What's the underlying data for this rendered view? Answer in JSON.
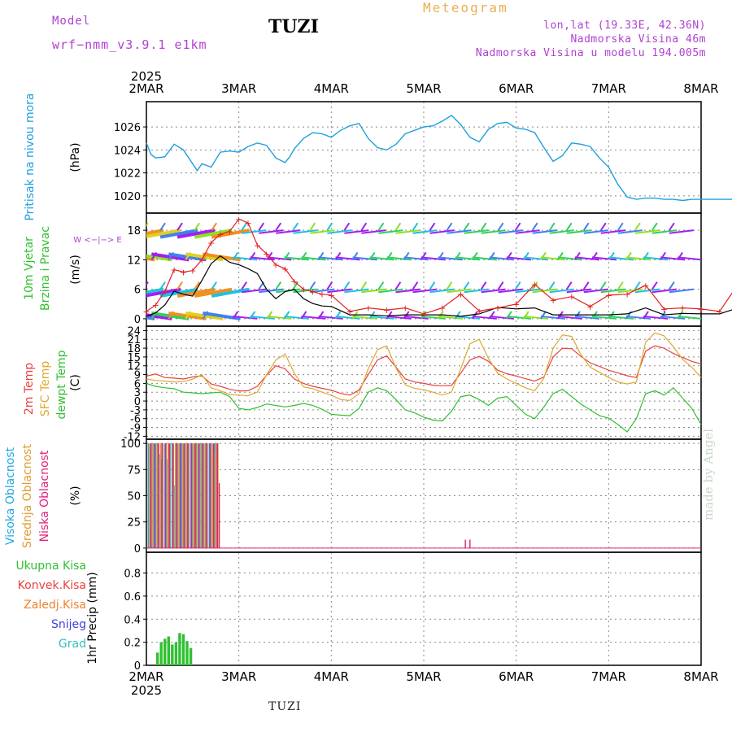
{
  "header": {
    "model_label": "Model",
    "model_name": "wrf−nmm_v3.9.1  e1km",
    "station": "TUZI",
    "title": "Meteogram",
    "lonlat": "lon,lat (19.33E, 42.36N)",
    "elevation": "Nadmorska Visina 46m",
    "model_elevation": "Nadmorska Visina u modelu 194.005m",
    "credit": "made by Angel"
  },
  "footer": {
    "station": "TUZI",
    "year": "2025"
  },
  "colors": {
    "pressure": "#1ea0e0",
    "temp2m": "#e84040",
    "sfc": "#e0a830",
    "dewpt": "#30c030",
    "wind_speed": "#000000",
    "wind_gust": "#e02020",
    "cloud_high": "#20a8e0",
    "cloud_mid": "#e09a30",
    "cloud_low": "#e0207a",
    "precip_total": "#30c030",
    "precip_conv": "#e84040",
    "precip_frozen": "#f08030",
    "snow": "#4040e0",
    "hail": "#30c0c0"
  },
  "chart_data": [
    {
      "type": "line",
      "panel": "pressure",
      "ylabel": "Pritisak na nivou mora",
      "unit": "(hPa)",
      "x_ticks": [
        "2MAR",
        "3MAR",
        "4MAR",
        "5MAR",
        "6MAR",
        "7MAR",
        "8MAR"
      ],
      "top_year": "2025",
      "ylim": [
        1018.5,
        1028.2
      ],
      "y_ticks": [
        1020,
        1022,
        1024,
        1026
      ],
      "x_day": [
        0,
        0.05,
        0.1,
        0.2,
        0.3,
        0.4,
        0.5,
        0.55,
        0.6,
        0.7,
        0.8,
        0.9,
        1.0,
        1.1,
        1.2,
        1.3,
        1.4,
        1.5,
        1.55,
        1.6,
        1.7,
        1.8,
        1.9,
        2.0,
        2.1,
        2.2,
        2.3,
        2.4,
        2.5,
        2.6,
        2.7,
        2.8,
        2.9,
        3.0,
        3.1,
        3.2,
        3.3,
        3.4,
        3.5,
        3.6,
        3.7,
        3.8,
        3.9,
        4.0,
        4.1,
        4.2,
        4.3,
        4.4,
        4.5,
        4.6,
        4.7,
        4.8,
        4.9,
        5.0,
        5.1,
        5.2,
        5.3,
        5.4,
        5.5,
        5.6,
        5.7,
        5.8,
        5.9,
        6.0,
        6.1,
        6.2,
        6.3,
        6.4,
        6.5,
        6.6,
        6.7,
        6.8,
        6.9,
        7.0
      ],
      "series": [
        {
          "values": [
            1024.6,
            1023.6,
            1023.3,
            1023.4,
            1024.5,
            1024.0,
            1022.8,
            1022.2,
            1022.8,
            1022.5,
            1023.8,
            1023.9,
            1023.8,
            1024.3,
            1024.6,
            1024.4,
            1023.3,
            1022.9,
            1023.4,
            1024.1,
            1025.0,
            1025.5,
            1025.4,
            1025.1,
            1025.7,
            1026.1,
            1026.3,
            1025.0,
            1024.2,
            1024.0,
            1024.5,
            1025.4,
            1025.7,
            1026.0,
            1026.1,
            1026.5,
            1027.0,
            1026.2,
            1025.1,
            1024.7,
            1025.8,
            1026.3,
            1026.4,
            1025.9,
            1025.8,
            1025.5,
            1024.2,
            1023.0,
            1023.5,
            1024.6,
            1024.5,
            1024.3,
            1023.3,
            1022.5,
            1021.0,
            1019.9,
            1019.7,
            1019.8,
            1019.8,
            1019.7,
            1019.7,
            1019.6,
            1019.7,
            1019.7,
            1019.7,
            1019.7,
            1019.7,
            1019.7,
            1019.7,
            1019.7,
            1019.7,
            1019.7,
            1019.7,
            1019.6
          ]
        }
      ]
    },
    {
      "type": "line",
      "panel": "wind",
      "ylabel": "10m Vjetar Brzina i Pravac",
      "unit": "(m/s)",
      "compass": "W <−|−> E",
      "ylim": [
        -1.5,
        21.5
      ],
      "y_ticks": [
        0,
        6,
        12,
        18
      ],
      "x_day": [
        0,
        0.1,
        0.2,
        0.3,
        0.4,
        0.5,
        0.6,
        0.7,
        0.8,
        0.9,
        1.0,
        1.1,
        1.2,
        1.3,
        1.4,
        1.5,
        1.6,
        1.7,
        1.8,
        1.9,
        2.0,
        2.2,
        2.4,
        2.6,
        2.8,
        3.0,
        3.2,
        3.4,
        3.6,
        3.8,
        4.0,
        4.2,
        4.4,
        4.6,
        4.8,
        5.0,
        5.2,
        5.4,
        5.6,
        5.8,
        6.0,
        6.2,
        6.4,
        6.6,
        6.8,
        7.0
      ],
      "series": [
        {
          "name": "speed",
          "values": [
            0.5,
            1.2,
            2.8,
            5.6,
            5.0,
            4.6,
            7.8,
            11.2,
            12.8,
            11.5,
            11.0,
            10.2,
            9.2,
            6.0,
            4.1,
            5.5,
            6.0,
            4.1,
            3.1,
            2.6,
            2.5,
            0.8,
            0.8,
            0.6,
            0.8,
            0.8,
            0.8,
            0.5,
            1.0,
            2.3,
            2.0,
            2.2,
            0.8,
            0.8,
            0.8,
            0.8,
            1.0,
            2.2,
            0.8,
            1.1,
            1.0,
            1.0,
            2.2,
            1.8,
            0.8,
            0.8
          ]
        },
        {
          "name": "gust",
          "values": [
            1.5,
            2.8,
            5.6,
            10.0,
            9.5,
            9.8,
            12.0,
            15.5,
            17.2,
            17.8,
            20.3,
            19.5,
            15.0,
            13.2,
            11.0,
            10.2,
            7.6,
            6.0,
            5.5,
            5.0,
            4.8,
            1.5,
            2.2,
            1.8,
            2.2,
            1.0,
            2.2,
            5.0,
            1.6,
            2.2,
            3.0,
            7.0,
            3.8,
            4.5,
            2.5,
            4.8,
            5.0,
            6.8,
            2.0,
            2.2,
            2.0,
            1.5,
            7.0,
            3.0,
            2.0,
            1.0
          ]
        }
      ]
    },
    {
      "type": "line",
      "panel": "temperature",
      "ylabel": [
        "2m Temp",
        "SFC Temp",
        "dewpt Temp"
      ],
      "unit": "(C)",
      "ylim": [
        -13,
        25.5
      ],
      "y_ticks": [
        -12,
        -9,
        -6,
        -3,
        0,
        3,
        6,
        9,
        12,
        15,
        18,
        21,
        24
      ],
      "x_day": [
        0,
        0.1,
        0.2,
        0.3,
        0.4,
        0.5,
        0.6,
        0.7,
        0.8,
        0.9,
        1.0,
        1.1,
        1.2,
        1.3,
        1.4,
        1.5,
        1.6,
        1.7,
        1.8,
        1.9,
        2.0,
        2.1,
        2.2,
        2.3,
        2.4,
        2.5,
        2.6,
        2.7,
        2.8,
        2.9,
        3.0,
        3.1,
        3.2,
        3.3,
        3.4,
        3.5,
        3.6,
        3.7,
        3.8,
        3.9,
        4.0,
        4.1,
        4.2,
        4.3,
        4.4,
        4.5,
        4.6,
        4.7,
        4.8,
        4.9,
        5.0,
        5.1,
        5.2,
        5.3,
        5.4,
        5.5,
        5.6,
        5.7,
        5.8,
        5.9,
        6.0,
        6.1,
        6.2,
        6.3,
        6.4,
        6.5,
        6.6,
        6.7,
        6.8,
        6.9,
        7.0
      ],
      "series": [
        {
          "name": "2m Temp",
          "values": [
            8.5,
            9.2,
            8.0,
            7.8,
            7.5,
            8.2,
            8.6,
            5.8,
            5.0,
            4.0,
            3.4,
            3.5,
            5.0,
            8.8,
            12.0,
            11.0,
            7.5,
            6.0,
            5.0,
            4.3,
            3.7,
            2.6,
            2.0,
            3.7,
            9.0,
            14.0,
            15.4,
            11.5,
            7.5,
            6.5,
            6.0,
            5.4,
            5.2,
            5.3,
            9.5,
            14.0,
            15.2,
            13.5,
            10.5,
            9.3,
            8.5,
            7.6,
            6.8,
            8.2,
            15.0,
            18.0,
            17.8,
            15.2,
            13.0,
            11.8,
            10.5,
            9.6,
            8.6,
            8.0,
            17.0,
            18.8,
            18.0,
            16.2,
            14.8,
            13.5,
            12.6
          ]
        },
        {
          "name": "SFC Temp",
          "values": [
            7.5,
            7.0,
            6.8,
            6.5,
            6.6,
            7.4,
            9.0,
            4.5,
            3.5,
            2.2,
            2.0,
            1.8,
            3.0,
            9.0,
            14.0,
            16.0,
            9.5,
            4.8,
            4.2,
            3.0,
            2.0,
            0.5,
            0.2,
            2.5,
            11.0,
            17.5,
            18.8,
            11.2,
            5.5,
            4.3,
            3.8,
            3.0,
            2.0,
            3.0,
            11.0,
            19.5,
            21.0,
            14.5,
            9.5,
            7.5,
            6.0,
            4.5,
            3.5,
            7.8,
            18.0,
            22.5,
            22.0,
            15.8,
            11.5,
            9.8,
            8.0,
            6.5,
            5.8,
            6.5,
            20.0,
            23.2,
            22.2,
            18.5,
            14.2,
            11.5,
            8.0
          ]
        },
        {
          "name": "dewpt Temp",
          "values": [
            6.0,
            5.0,
            4.5,
            4.2,
            3.0,
            2.8,
            2.5,
            2.8,
            3.0,
            1.5,
            -2.5,
            -3.0,
            -2.2,
            -1.0,
            -1.5,
            -2.0,
            -1.5,
            -0.8,
            -1.5,
            -2.8,
            -4.5,
            -4.8,
            -5.0,
            -2.5,
            3.0,
            4.5,
            3.5,
            0.5,
            -3.0,
            -4.0,
            -5.5,
            -6.5,
            -6.8,
            -3.5,
            1.5,
            2.0,
            0.5,
            -1.5,
            1.0,
            1.5,
            -1.5,
            -4.5,
            -6.0,
            -2.0,
            2.5,
            4.0,
            1.5,
            -1.0,
            -3.0,
            -5.0,
            -5.8,
            -8.0,
            -10.5,
            -6.0,
            2.5,
            3.5,
            2.0,
            4.5,
            1.0,
            -2.5,
            -8.0
          ]
        }
      ]
    },
    {
      "type": "bar",
      "panel": "clouds",
      "ylabel": [
        "Visoka Oblacnost",
        "Srednja Oblacnost",
        "Niska Oblacnost"
      ],
      "unit": "(%)",
      "ylim": [
        -4,
        104
      ],
      "y_ticks": [
        0,
        25,
        50,
        75,
        100
      ],
      "x_day": [
        0.02,
        0.04,
        0.06,
        0.08,
        0.1,
        0.12,
        0.14,
        0.16,
        0.18,
        0.2,
        0.22,
        0.24,
        0.26,
        0.28,
        0.3,
        0.32,
        0.34,
        0.36,
        0.38,
        0.4,
        0.42,
        0.44,
        0.46,
        0.48,
        0.5,
        0.52,
        0.54,
        0.56,
        0.58,
        0.6,
        0.62,
        0.64,
        0.66,
        0.68,
        0.7,
        0.72,
        0.74,
        0.76
      ],
      "series": [
        {
          "name": "Visoka Oblacnost",
          "values": [
            100,
            100,
            100,
            100,
            100,
            100,
            90,
            85,
            100,
            100,
            85,
            100,
            100,
            100,
            60,
            100,
            100,
            100,
            100,
            100,
            100,
            100,
            100,
            100,
            100,
            100,
            100,
            100,
            100,
            100,
            100,
            100,
            100,
            100,
            100,
            100,
            100,
            100
          ]
        },
        {
          "name": "Srednja Oblacnost",
          "values": [
            100,
            100,
            100,
            0,
            100,
            100,
            100,
            100,
            0,
            100,
            100,
            100,
            0,
            100,
            100,
            100,
            100,
            0,
            100,
            100,
            100,
            100,
            0,
            100,
            100,
            100,
            100,
            0,
            100,
            100,
            100,
            100,
            0,
            100,
            100,
            90,
            100,
            100
          ]
        },
        {
          "name": "Niska Oblacnost",
          "values": [
            100,
            0,
            100,
            0,
            100,
            0,
            100,
            0,
            100,
            0,
            100,
            0,
            100,
            0,
            100,
            0,
            100,
            0,
            100,
            0,
            100,
            0,
            100,
            0,
            100,
            0,
            100,
            0,
            100,
            0,
            100,
            0,
            100,
            0,
            100,
            0,
            100,
            62
          ]
        }
      ],
      "extra_low": [
        {
          "x": 3.45,
          "value": 8
        },
        {
          "x": 3.5,
          "value": 8
        }
      ]
    },
    {
      "type": "bar",
      "panel": "precip",
      "ylabel": "1hr Precip (mm)",
      "legend": [
        "Ukupna Kisa",
        "Konvek.Kisa",
        "Zaledj.Kisa",
        "Snijeg",
        "Grad"
      ],
      "ylim": [
        0,
        0.98
      ],
      "y_ticks": [
        0,
        0.2,
        0.4,
        0.6,
        0.8
      ],
      "x_day": [
        0.12,
        0.16,
        0.2,
        0.24,
        0.28,
        0.32,
        0.36,
        0.4,
        0.44,
        0.48
      ],
      "series": [
        {
          "name": "Ukupna Kisa",
          "values": [
            0.11,
            0.2,
            0.23,
            0.25,
            0.18,
            0.2,
            0.28,
            0.27,
            0.21,
            0.15
          ]
        }
      ]
    }
  ]
}
